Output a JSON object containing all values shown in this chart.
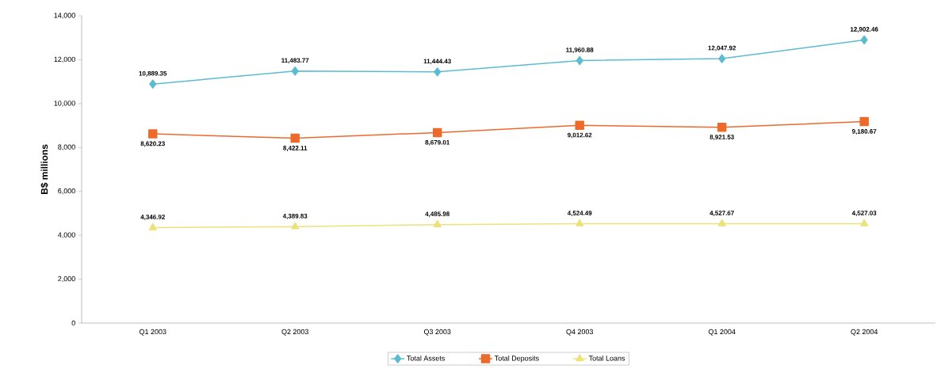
{
  "chart_data": {
    "type": "line",
    "ylabel": "B$ millions",
    "categories": [
      "Q1 2003",
      "Q2 2003",
      "Q3 2003",
      "Q4 2003",
      "Q1 2004",
      "Q2 2004"
    ],
    "series": [
      {
        "name": "Total Assets",
        "color": "#5bbccf",
        "marker": "diamond",
        "values": [
          10889.35,
          11483.77,
          11444.43,
          11960.88,
          12047.92,
          12902.46
        ],
        "value_labels": [
          "10,889.35",
          "11,483.77",
          "11,444.43",
          "11,960.88",
          "12,047.92",
          "12,902.46"
        ]
      },
      {
        "name": "Total Deposits",
        "color": "#ee6a2c",
        "marker": "square",
        "values": [
          8620.23,
          8422.11,
          8679.01,
          9012.62,
          8921.53,
          9180.67
        ],
        "value_labels": [
          "8,620.23",
          "8,422.11",
          "8,679.01",
          "9,012.62",
          "8,921.53",
          "9,180.67"
        ]
      },
      {
        "name": "Total Loans",
        "color": "#ece27a",
        "marker": "triangle",
        "values": [
          4346.92,
          4389.83,
          4485.98,
          4524.49,
          4527.67,
          4527.03
        ],
        "value_labels": [
          "4,346.92",
          "4,389.83",
          "4,485.98",
          "4,524.49",
          "4,527.67",
          "4,527.03"
        ]
      }
    ],
    "ylim": [
      0,
      14000
    ],
    "yticks": [
      {
        "value": 0,
        "label": "0"
      },
      {
        "value": 2000,
        "label": "2,000"
      },
      {
        "value": 4000,
        "label": "4,000"
      },
      {
        "value": 6000,
        "label": "6,000"
      },
      {
        "value": 8000,
        "label": "8,000"
      },
      {
        "value": 10000,
        "label": "10,000"
      },
      {
        "value": 12000,
        "label": "12,000"
      },
      {
        "value": 14000,
        "label": "14,000"
      }
    ],
    "legend": "bottom",
    "line_style": "solid",
    "grid": false
  }
}
